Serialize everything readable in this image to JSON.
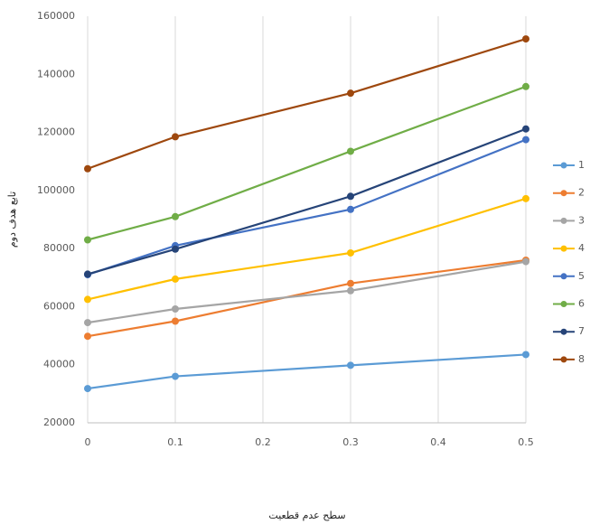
{
  "chart_data": {
    "type": "line",
    "x_label": "سطح عدم قطعیت",
    "y_label": "تابع هدف دوم",
    "x": [
      0,
      0.1,
      0.3,
      0.5
    ],
    "xlim": [
      0,
      0.5
    ],
    "xticks": [
      0,
      0.1,
      0.2,
      0.3,
      0.4,
      0.5
    ],
    "ylim": [
      20000,
      160000
    ],
    "yticks": [
      20000,
      40000,
      60000,
      80000,
      100000,
      120000,
      140000,
      160000
    ],
    "grid": "x",
    "legend": "right",
    "series": [
      {
        "name": "1",
        "color": "#5b9bd5",
        "values": [
          31800,
          36000,
          39800,
          43500
        ]
      },
      {
        "name": "2",
        "color": "#ed7d31",
        "values": [
          49800,
          55000,
          68000,
          76000
        ]
      },
      {
        "name": "3",
        "color": "#a5a5a5",
        "values": [
          54500,
          59200,
          65500,
          75500
        ]
      },
      {
        "name": "4",
        "color": "#ffc000",
        "values": [
          62500,
          69500,
          78500,
          97200
        ]
      },
      {
        "name": "5",
        "color": "#4472c4",
        "values": [
          71000,
          81000,
          93500,
          117500
        ]
      },
      {
        "name": "6",
        "color": "#70ad47",
        "values": [
          83000,
          91000,
          113500,
          135800
        ]
      },
      {
        "name": "7",
        "color": "#264478",
        "values": [
          71200,
          79800,
          98000,
          121200
        ]
      },
      {
        "name": "8",
        "color": "#9e480e",
        "values": [
          107500,
          118500,
          133500,
          152200
        ]
      }
    ]
  }
}
